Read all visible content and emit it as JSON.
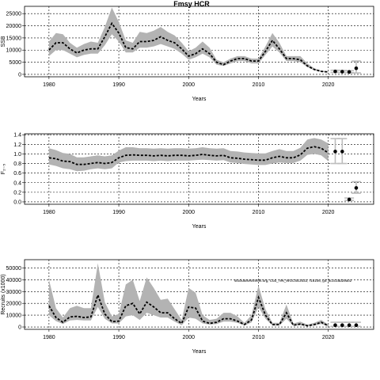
{
  "title": "Fmsy HCR",
  "chart_data": [
    {
      "type": "area",
      "panel": "ssb",
      "ylabel": "SSB",
      "xlabel": "Years",
      "xlim": [
        1976.5,
        2026.5
      ],
      "ylim": [
        -1000,
        28000
      ],
      "xticks": [
        1980,
        1990,
        2000,
        2010,
        2020
      ],
      "yticks": [
        0,
        5000,
        10000,
        15000,
        20000,
        25000
      ],
      "grid": true,
      "history_x": [
        1980,
        1981,
        1982,
        1983,
        1984,
        1985,
        1986,
        1987,
        1988,
        1989,
        1990,
        1991,
        1992,
        1993,
        1994,
        1995,
        1996,
        1997,
        1998,
        1999,
        2000,
        2001,
        2002,
        2003,
        2004,
        2005,
        2006,
        2007,
        2008,
        2009,
        2010,
        2011,
        2012,
        2013,
        2014,
        2015,
        2016,
        2017,
        2018,
        2019,
        2020
      ],
      "median": [
        10000,
        13000,
        13000,
        10500,
        8800,
        10000,
        10500,
        10500,
        15500,
        21000,
        17000,
        11000,
        10500,
        13500,
        13500,
        14000,
        15500,
        14000,
        13000,
        10500,
        7500,
        8500,
        10500,
        8500,
        5000,
        4000,
        5500,
        6500,
        6500,
        5500,
        5500,
        9500,
        14000,
        10500,
        6500,
        6500,
        6000,
        3500,
        2000,
        1200,
        1000
      ],
      "lower": [
        7500,
        10000,
        10000,
        8500,
        7000,
        8000,
        8500,
        8500,
        12000,
        16500,
        13500,
        9000,
        9000,
        11000,
        11000,
        11500,
        12500,
        11500,
        10500,
        8500,
        6000,
        7000,
        8500,
        7000,
        4000,
        3500,
        4500,
        5500,
        5500,
        4500,
        4500,
        8000,
        11500,
        9000,
        5500,
        5500,
        5000,
        3000,
        1700,
        1000,
        800
      ],
      "upper": [
        13500,
        17000,
        16500,
        13000,
        11000,
        12500,
        13500,
        13000,
        19500,
        27500,
        21500,
        14000,
        13000,
        17500,
        17000,
        18000,
        19500,
        17500,
        16000,
        13000,
        9500,
        11000,
        13500,
        11000,
        6000,
        5000,
        6500,
        7500,
        7500,
        6500,
        6500,
        11500,
        17000,
        13000,
        7500,
        7500,
        7500,
        4500,
        2500,
        1500,
        1200
      ],
      "proj_x": [
        2021,
        2022,
        2023,
        2024
      ],
      "proj_median": [
        1200,
        1100,
        1000,
        2500
      ],
      "proj_lower": [
        800,
        800,
        700,
        600
      ],
      "proj_upper": [
        1700,
        1600,
        1500,
        5500
      ]
    },
    {
      "type": "area",
      "panel": "f",
      "ylabel": "F₂₋₅",
      "xlabel": "Years",
      "xlim": [
        1976.5,
        2026.5
      ],
      "ylim": [
        -0.05,
        1.42
      ],
      "xticks": [
        1980,
        1990,
        2000,
        2010,
        2020
      ],
      "yticks": [
        0.0,
        0.2,
        0.4,
        0.6,
        0.8,
        1.0,
        1.2,
        1.4
      ],
      "ytick_labels": [
        "0.0",
        "0.2",
        "0.4",
        "0.6",
        "0.8",
        "1.0",
        "1.2",
        "1.4"
      ],
      "grid": true,
      "history_x": [
        1980,
        1981,
        1982,
        1983,
        1984,
        1985,
        1986,
        1987,
        1988,
        1989,
        1990,
        1991,
        1992,
        1993,
        1994,
        1995,
        1996,
        1997,
        1998,
        1999,
        2000,
        2001,
        2002,
        2003,
        2004,
        2005,
        2006,
        2007,
        2008,
        2009,
        2010,
        2011,
        2012,
        2013,
        2014,
        2015,
        2016,
        2017,
        2018,
        2019,
        2020
      ],
      "median": [
        0.92,
        0.9,
        0.85,
        0.84,
        0.78,
        0.78,
        0.8,
        0.82,
        0.8,
        0.82,
        0.92,
        0.97,
        0.98,
        0.97,
        0.97,
        0.96,
        0.97,
        0.96,
        0.97,
        0.97,
        0.96,
        0.97,
        0.99,
        0.97,
        0.96,
        0.97,
        0.92,
        0.91,
        0.89,
        0.88,
        0.87,
        0.87,
        0.92,
        0.95,
        0.92,
        0.92,
        0.98,
        1.12,
        1.15,
        1.12,
        1.02
      ],
      "lower": [
        0.78,
        0.75,
        0.7,
        0.68,
        0.64,
        0.65,
        0.68,
        0.7,
        0.68,
        0.7,
        0.82,
        0.85,
        0.86,
        0.86,
        0.86,
        0.85,
        0.86,
        0.85,
        0.86,
        0.86,
        0.86,
        0.87,
        0.88,
        0.87,
        0.86,
        0.87,
        0.82,
        0.81,
        0.79,
        0.78,
        0.77,
        0.77,
        0.8,
        0.82,
        0.81,
        0.81,
        0.86,
        0.98,
        1.0,
        0.97,
        0.85
      ],
      "upper": [
        1.12,
        1.08,
        1.02,
        1.0,
        0.93,
        0.93,
        0.95,
        0.97,
        0.95,
        0.97,
        1.07,
        1.14,
        1.14,
        1.12,
        1.12,
        1.11,
        1.12,
        1.11,
        1.12,
        1.12,
        1.11,
        1.12,
        1.14,
        1.12,
        1.11,
        1.12,
        1.06,
        1.05,
        1.03,
        1.02,
        1.01,
        1.01,
        1.06,
        1.1,
        1.06,
        1.06,
        1.13,
        1.3,
        1.33,
        1.3,
        1.22
      ],
      "proj_x": [
        2021,
        2022,
        2023,
        2024
      ],
      "proj_median": [
        1.05,
        1.05,
        0.05,
        0.29
      ],
      "proj_lower": [
        0.8,
        0.8,
        0.03,
        0.18
      ],
      "proj_upper": [
        1.32,
        1.32,
        0.08,
        0.42
      ]
    },
    {
      "type": "area",
      "panel": "recruits",
      "ylabel": "Recruits (x1000)",
      "xlabel": "Years",
      "xlim": [
        1976.5,
        2026.5
      ],
      "ylim": [
        -2000,
        57000
      ],
      "xticks": [
        1980,
        1990,
        2000,
        2010,
        2020
      ],
      "yticks": [
        0,
        10000,
        20000,
        30000,
        40000,
        50000
      ],
      "grid": true,
      "annotation": "stockassessment.org, Cod_7ek_WGCSE2022, r16106, git: ac2c2ad29a02",
      "history_x": [
        1980,
        1981,
        1982,
        1983,
        1984,
        1985,
        1986,
        1987,
        1988,
        1989,
        1990,
        1991,
        1992,
        1993,
        1994,
        1995,
        1996,
        1997,
        1998,
        1999,
        2000,
        2001,
        2002,
        2003,
        2004,
        2005,
        2006,
        2007,
        2008,
        2009,
        2010,
        2011,
        2012,
        2013,
        2014,
        2015,
        2016,
        2017,
        2018,
        2019,
        2020
      ],
      "median": [
        18000,
        8000,
        4000,
        8500,
        9000,
        8000,
        8500,
        27000,
        11000,
        4500,
        5000,
        18000,
        20000,
        11000,
        21000,
        17000,
        12000,
        12000,
        7000,
        3000,
        17000,
        16000,
        5000,
        3000,
        4000,
        7000,
        7000,
        5000,
        2000,
        6000,
        25000,
        10000,
        2000,
        2000,
        12000,
        1500,
        2500,
        1000,
        2000,
        4000,
        1000
      ],
      "lower": [
        10000,
        5000,
        2500,
        5500,
        6000,
        5500,
        5500,
        17000,
        7000,
        3000,
        3000,
        9000,
        10000,
        6000,
        12000,
        10000,
        8000,
        8000,
        4500,
        1500,
        8000,
        7000,
        3000,
        2000,
        2500,
        4500,
        4500,
        3500,
        1200,
        3800,
        17000,
        7000,
        1200,
        1200,
        7000,
        800,
        1500,
        500,
        1200,
        2500,
        500
      ],
      "upper": [
        40000,
        16000,
        8000,
        16000,
        18000,
        16000,
        16000,
        54000,
        21000,
        9000,
        11000,
        36000,
        40000,
        22000,
        42000,
        33000,
        23000,
        24000,
        15000,
        6000,
        33000,
        29000,
        10000,
        6000,
        7000,
        12000,
        12000,
        9000,
        3500,
        10000,
        35000,
        15000,
        3500,
        3500,
        19000,
        3000,
        4500,
        2000,
        3500,
        6000,
        2000
      ],
      "proj_x": [
        2021,
        2022,
        2023,
        2024
      ],
      "proj_median": [
        1500,
        1500,
        1500,
        1500
      ],
      "proj_lower": [
        500,
        500,
        500,
        500
      ],
      "proj_upper": [
        4000,
        4000,
        4000,
        4000
      ]
    }
  ]
}
